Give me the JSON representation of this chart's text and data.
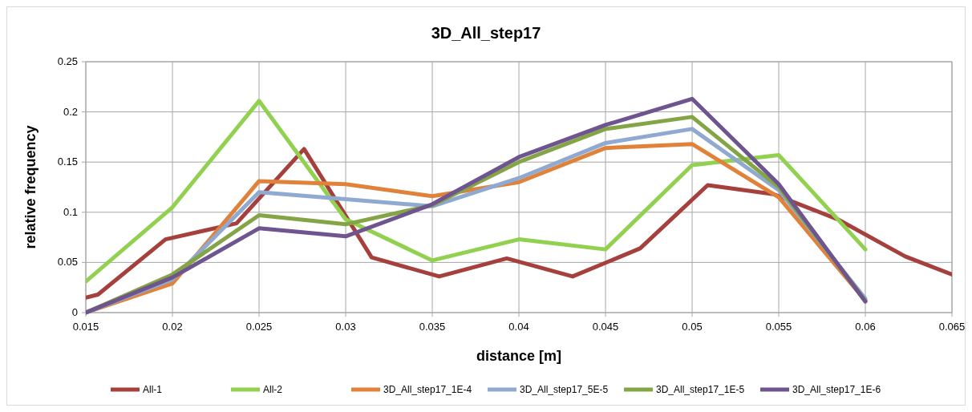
{
  "chart_data": {
    "type": "line",
    "title": "3D_All_step17",
    "xlabel": "distance [m]",
    "ylabel": "relative frequency",
    "xlim": [
      0.015,
      0.065
    ],
    "xticks": [
      0.015,
      0.02,
      0.025,
      0.03,
      0.035,
      0.04,
      0.045,
      0.05,
      0.055,
      0.06,
      0.065
    ],
    "ylim": [
      0,
      0.25
    ],
    "yticks": [
      0,
      0.05,
      0.1,
      0.15,
      0.2,
      0.25
    ],
    "grid": true,
    "legend": "bottom",
    "line_style": "solid",
    "series": [
      {
        "name": "All-1",
        "color": "#a5403d",
        "x": [
          0.015,
          0.0157,
          0.0196,
          0.0237,
          0.0276,
          0.0315,
          0.0354,
          0.0393,
          0.0431,
          0.047,
          0.0509,
          0.0547,
          0.0584,
          0.0623,
          0.065
        ],
        "values": [
          0.015,
          0.018,
          0.073,
          0.089,
          0.163,
          0.055,
          0.036,
          0.054,
          0.036,
          0.064,
          0.127,
          0.118,
          0.093,
          0.056,
          0.038
        ]
      },
      {
        "name": "All-2",
        "color": "#92d050",
        "x": [
          0.015,
          0.02,
          0.025,
          0.03,
          0.035,
          0.04,
          0.045,
          0.05,
          0.055,
          0.06
        ],
        "values": [
          0.031,
          0.105,
          0.211,
          0.093,
          0.052,
          0.073,
          0.063,
          0.147,
          0.157,
          0.063
        ]
      },
      {
        "name": "3D_All_step17_1E-4",
        "color": "#e0823a",
        "x": [
          0.015,
          0.02,
          0.025,
          0.03,
          0.035,
          0.04,
          0.045,
          0.05,
          0.055,
          0.06
        ],
        "values": [
          0,
          0.029,
          0.131,
          0.128,
          0.116,
          0.13,
          0.164,
          0.168,
          0.115,
          0.012
        ]
      },
      {
        "name": "3D_All_step17_5E-5",
        "color": "#8fa9d0",
        "x": [
          0.015,
          0.02,
          0.025,
          0.03,
          0.035,
          0.04,
          0.045,
          0.05,
          0.055,
          0.06
        ],
        "values": [
          0,
          0.033,
          0.12,
          0.113,
          0.106,
          0.134,
          0.169,
          0.183,
          0.122,
          0.014
        ]
      },
      {
        "name": "3D_All_step17_1E-5",
        "color": "#84a546",
        "x": [
          0.015,
          0.02,
          0.025,
          0.03,
          0.035,
          0.04,
          0.045,
          0.05,
          0.055,
          0.06
        ],
        "values": [
          0,
          0.038,
          0.097,
          0.088,
          0.107,
          0.15,
          0.183,
          0.195,
          0.125,
          0.012
        ]
      },
      {
        "name": "3D_All_step17_1E-6",
        "color": "#6e558f",
        "x": [
          0.015,
          0.02,
          0.025,
          0.03,
          0.035,
          0.04,
          0.045,
          0.05,
          0.055,
          0.06
        ],
        "values": [
          0,
          0.035,
          0.084,
          0.076,
          0.108,
          0.155,
          0.187,
          0.213,
          0.128,
          0.011
        ]
      }
    ]
  }
}
